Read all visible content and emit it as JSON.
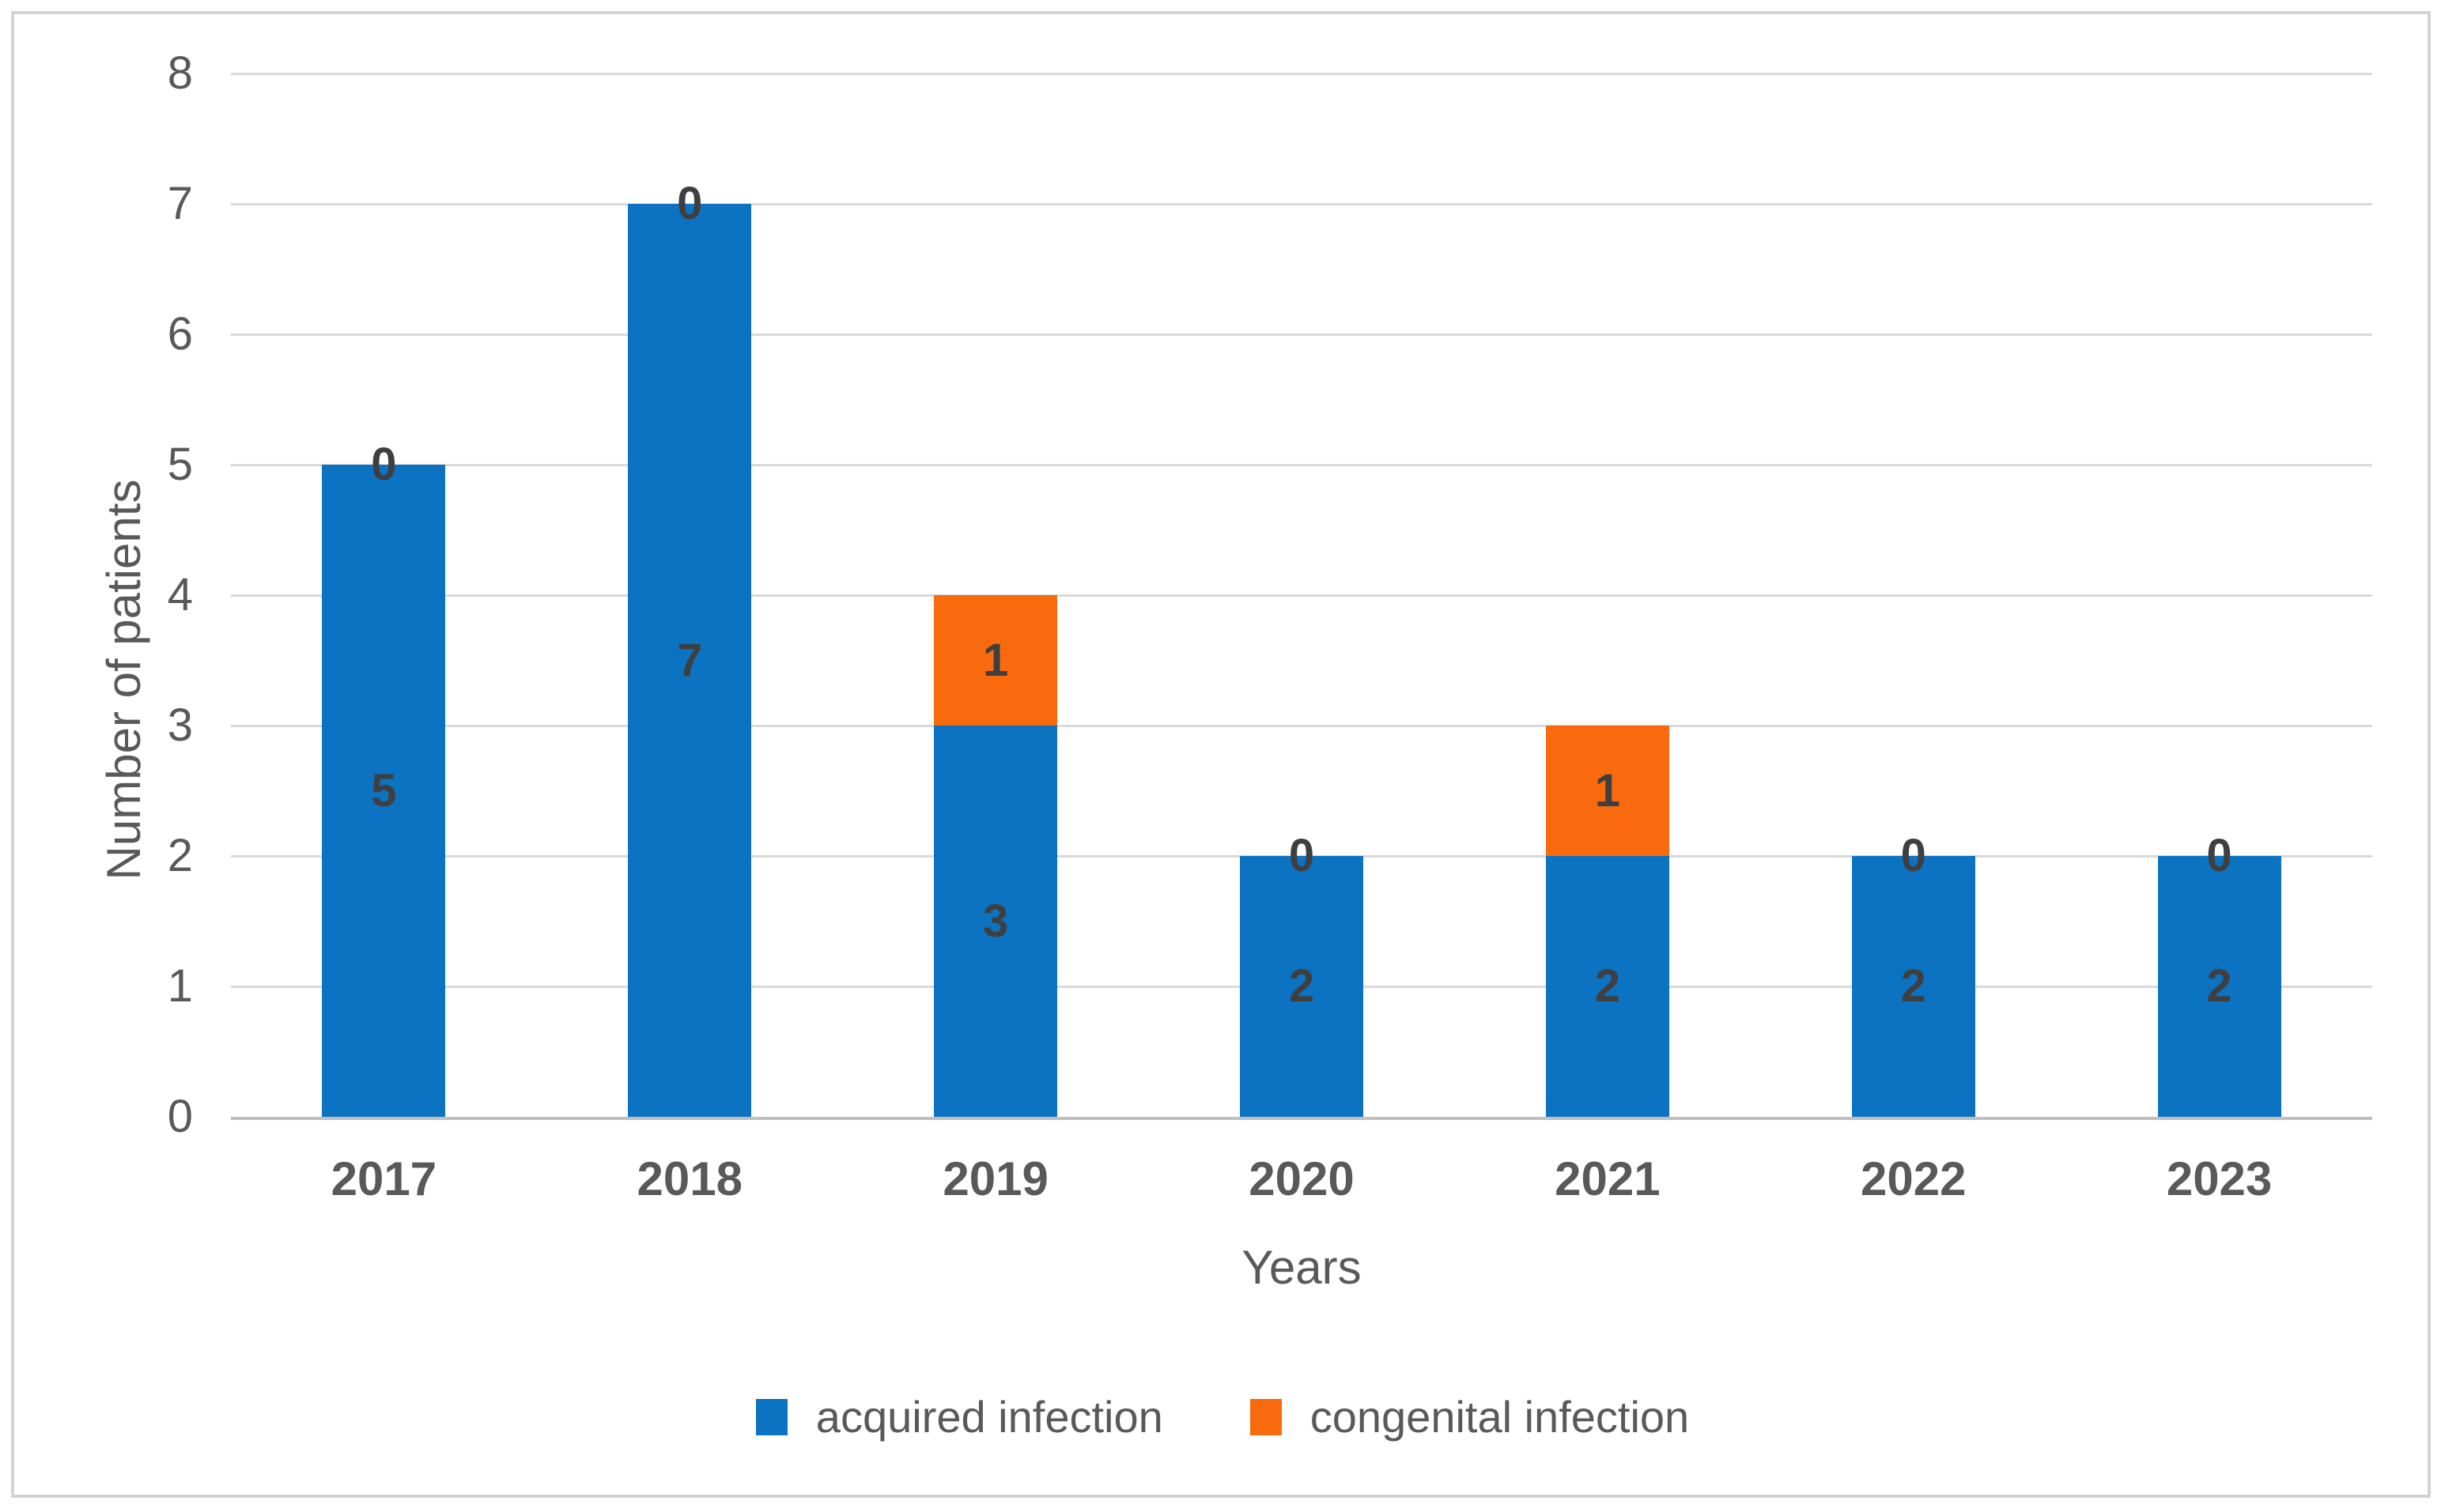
{
  "chart_data": {
    "type": "bar",
    "stacked": true,
    "categories": [
      "2017",
      "2018",
      "2019",
      "2020",
      "2021",
      "2022",
      "2023"
    ],
    "series": [
      {
        "name": "acquired infection",
        "color": "#0b73c2",
        "values": [
          5,
          7,
          3,
          2,
          2,
          2,
          2
        ]
      },
      {
        "name": "congenital infection",
        "color": "#f9690e",
        "values": [
          0,
          0,
          1,
          0,
          1,
          0,
          0
        ]
      }
    ],
    "title": "",
    "xlabel": "Years",
    "ylabel": "Number of patients",
    "ylim": [
      0,
      8
    ],
    "yticks": [
      0,
      1,
      2,
      3,
      4,
      5,
      6,
      7,
      8
    ],
    "grid": true,
    "data_labels": true,
    "legend_position": "bottom"
  },
  "style_colors": {
    "gridline": "#d9d9d9",
    "axis_line": "#bfbfbf",
    "tick_text": "#595959",
    "data_label_text": "#3f3f3f",
    "frame_border": "#d3d3d3"
  }
}
